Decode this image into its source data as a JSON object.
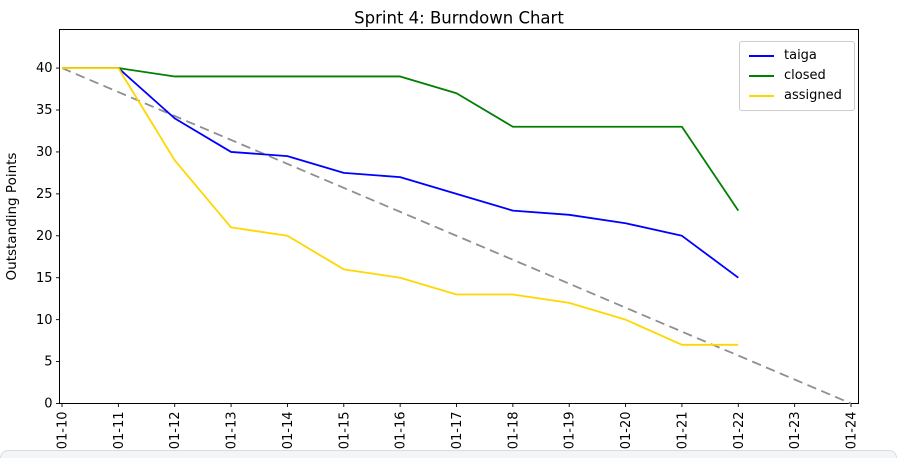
{
  "chart_data": {
    "type": "line",
    "title": "Sprint 4: Burndown Chart",
    "xlabel": "",
    "ylabel": "Outstanding Points",
    "x_tick_labels": [
      "01-10",
      "01-11",
      "01-12",
      "01-13",
      "01-14",
      "01-15",
      "01-16",
      "01-17",
      "01-18",
      "01-19",
      "01-20",
      "01-21",
      "01-22",
      "01-23",
      "01-24"
    ],
    "y_ticks": [
      0,
      5,
      10,
      15,
      20,
      25,
      30,
      35,
      40
    ],
    "ylim": [
      0,
      44.6
    ],
    "grid": false,
    "legend_position": "upper right",
    "categories": [
      "01-10",
      "01-11",
      "01-12",
      "01-13",
      "01-14",
      "01-15",
      "01-16",
      "01-17",
      "01-18",
      "01-19",
      "01-20",
      "01-21",
      "01-22"
    ],
    "series": [
      {
        "name": "ideal",
        "color": "#8f8f8f",
        "line_style": "dashed",
        "in_legend": false,
        "points": [
          {
            "x_index": 0,
            "y": 40
          },
          {
            "x_index": 14,
            "y": 0
          }
        ]
      },
      {
        "name": "taiga",
        "color": "#0000ff",
        "line_style": "solid",
        "in_legend": true,
        "values": [
          40,
          40,
          34,
          30,
          29.5,
          27.5,
          27,
          25,
          23,
          22.5,
          21.5,
          20,
          15
        ]
      },
      {
        "name": "closed",
        "color": "#008000",
        "line_style": "solid",
        "in_legend": true,
        "values": [
          40,
          40,
          39,
          39,
          39,
          39,
          39,
          37,
          33,
          33,
          33,
          33,
          23
        ]
      },
      {
        "name": "assigned",
        "color": "#ffd700",
        "line_style": "solid",
        "in_legend": true,
        "values": [
          40,
          40,
          29,
          21,
          20,
          16,
          15,
          13,
          13,
          12,
          10,
          7,
          7
        ]
      }
    ]
  }
}
